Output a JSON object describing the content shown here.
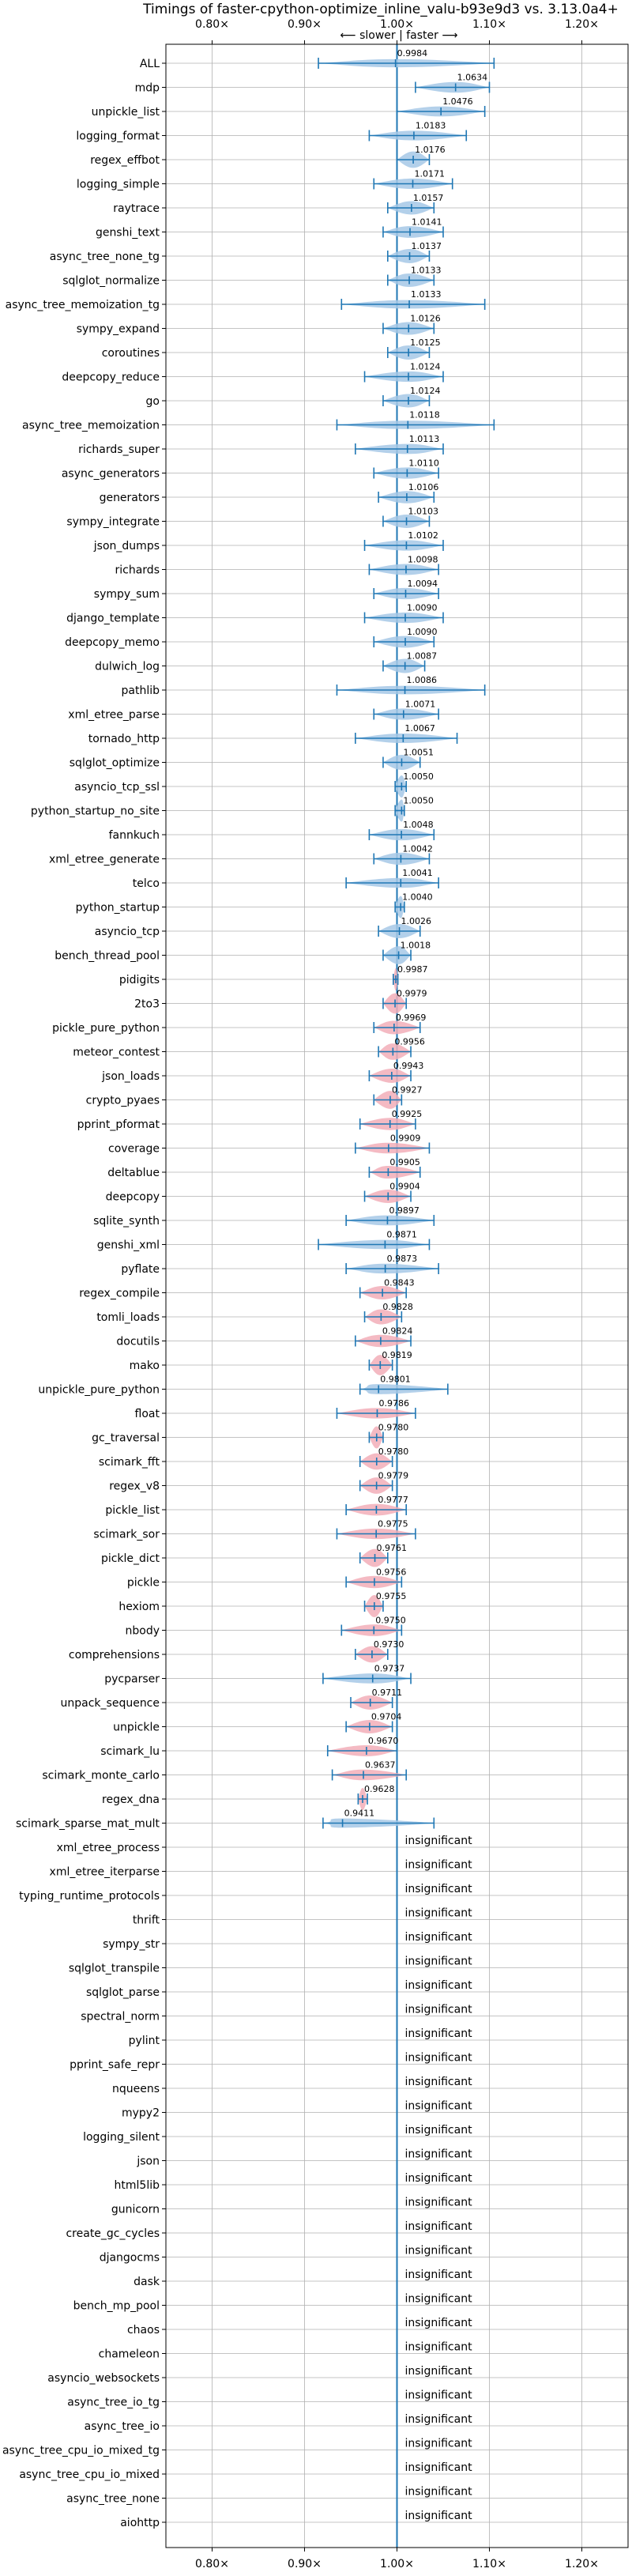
{
  "chart_data": {
    "type": "violin",
    "title": "Timings of faster-cpython-optimize_inline_valu-b93e9d3 vs. 3.13.0a4+",
    "direction_note": "⟵ slower | faster ⟶",
    "xlim": [
      0.75,
      1.25
    ],
    "xticks": [
      0.8,
      0.9,
      1.0,
      1.1,
      1.2
    ],
    "xtick_labels": [
      "0.80×",
      "0.90×",
      "1.00×",
      "1.10×",
      "1.20×"
    ],
    "grid": true,
    "colors": {
      "faster": "#1f77b4",
      "slower": "#e377c2",
      "violin_faster": "#a6c8e6",
      "violin_slower": "#f2aeb8",
      "line": "#1f77b4"
    },
    "significant": [
      {
        "name": "ALL",
        "value": 0.9984,
        "min": 0.915,
        "max": 1.105,
        "label": "0.9984"
      },
      {
        "name": "mdp",
        "value": 1.0634,
        "min": 1.02,
        "max": 1.1,
        "label": "1.0634"
      },
      {
        "name": "unpickle_list",
        "value": 1.0476,
        "min": 1.0,
        "max": 1.095,
        "label": "1.0476"
      },
      {
        "name": "logging_format",
        "value": 1.0183,
        "min": 0.97,
        "max": 1.075,
        "label": "1.0183"
      },
      {
        "name": "regex_effbot",
        "value": 1.0176,
        "min": 1.0,
        "max": 1.035,
        "label": "1.0176"
      },
      {
        "name": "logging_simple",
        "value": 1.0171,
        "min": 0.975,
        "max": 1.06,
        "label": "1.0171"
      },
      {
        "name": "raytrace",
        "value": 1.0157,
        "min": 0.99,
        "max": 1.04,
        "label": "1.0157"
      },
      {
        "name": "genshi_text",
        "value": 1.0141,
        "min": 0.985,
        "max": 1.05,
        "label": "1.0141"
      },
      {
        "name": "async_tree_none_tg",
        "value": 1.0137,
        "min": 0.99,
        "max": 1.035,
        "label": "1.0137"
      },
      {
        "name": "sqlglot_normalize",
        "value": 1.0133,
        "min": 0.99,
        "max": 1.04,
        "label": "1.0133"
      },
      {
        "name": "async_tree_memoization_tg",
        "value": 1.0133,
        "min": 0.94,
        "max": 1.095,
        "label": "1.0133"
      },
      {
        "name": "sympy_expand",
        "value": 1.0126,
        "min": 0.985,
        "max": 1.04,
        "label": "1.0126"
      },
      {
        "name": "coroutines",
        "value": 1.0125,
        "min": 0.99,
        "max": 1.035,
        "label": "1.0125"
      },
      {
        "name": "deepcopy_reduce",
        "value": 1.0124,
        "min": 0.965,
        "max": 1.05,
        "label": "1.0124"
      },
      {
        "name": "go",
        "value": 1.0124,
        "min": 0.985,
        "max": 1.035,
        "label": "1.0124"
      },
      {
        "name": "async_tree_memoization",
        "value": 1.0118,
        "min": 0.935,
        "max": 1.105,
        "label": "1.0118"
      },
      {
        "name": "richards_super",
        "value": 1.0113,
        "min": 0.955,
        "max": 1.05,
        "label": "1.0113"
      },
      {
        "name": "async_generators",
        "value": 1.011,
        "min": 0.975,
        "max": 1.045,
        "label": "1.0110"
      },
      {
        "name": "generators",
        "value": 1.0106,
        "min": 0.98,
        "max": 1.04,
        "label": "1.0106"
      },
      {
        "name": "sympy_integrate",
        "value": 1.0103,
        "min": 0.985,
        "max": 1.035,
        "label": "1.0103"
      },
      {
        "name": "json_dumps",
        "value": 1.0102,
        "min": 0.965,
        "max": 1.05,
        "label": "1.0102"
      },
      {
        "name": "richards",
        "value": 1.0098,
        "min": 0.97,
        "max": 1.045,
        "label": "1.0098"
      },
      {
        "name": "sympy_sum",
        "value": 1.0094,
        "min": 0.975,
        "max": 1.045,
        "label": "1.0094"
      },
      {
        "name": "django_template",
        "value": 1.009,
        "min": 0.965,
        "max": 1.05,
        "label": "1.0090"
      },
      {
        "name": "deepcopy_memo",
        "value": 1.009,
        "min": 0.975,
        "max": 1.04,
        "label": "1.0090"
      },
      {
        "name": "dulwich_log",
        "value": 1.0087,
        "min": 0.985,
        "max": 1.03,
        "label": "1.0087"
      },
      {
        "name": "pathlib",
        "value": 1.0086,
        "min": 0.935,
        "max": 1.095,
        "label": "1.0086"
      },
      {
        "name": "xml_etree_parse",
        "value": 1.0071,
        "min": 0.975,
        "max": 1.045,
        "label": "1.0071"
      },
      {
        "name": "tornado_http",
        "value": 1.0067,
        "min": 0.955,
        "max": 1.065,
        "label": "1.0067"
      },
      {
        "name": "sqlglot_optimize",
        "value": 1.0051,
        "min": 0.985,
        "max": 1.025,
        "label": "1.0051"
      },
      {
        "name": "asyncio_tcp_ssl",
        "value": 1.005,
        "min": 0.998,
        "max": 1.01,
        "label": "1.0050"
      },
      {
        "name": "python_startup_no_site",
        "value": 1.005,
        "min": 0.998,
        "max": 1.008,
        "label": "1.0050"
      },
      {
        "name": "fannkuch",
        "value": 1.0048,
        "min": 0.97,
        "max": 1.04,
        "label": "1.0048"
      },
      {
        "name": "xml_etree_generate",
        "value": 1.0042,
        "min": 0.975,
        "max": 1.035,
        "label": "1.0042"
      },
      {
        "name": "telco",
        "value": 1.0041,
        "min": 0.945,
        "max": 1.045,
        "label": "1.0041"
      },
      {
        "name": "python_startup",
        "value": 1.004,
        "min": 0.998,
        "max": 1.008,
        "label": "1.0040"
      },
      {
        "name": "asyncio_tcp",
        "value": 1.0026,
        "min": 0.98,
        "max": 1.025,
        "label": "1.0026"
      },
      {
        "name": "bench_thread_pool",
        "value": 1.0018,
        "min": 0.985,
        "max": 1.015,
        "label": "1.0018"
      },
      {
        "name": "pidigits",
        "value": 0.9987,
        "min": 0.996,
        "max": 1.001,
        "label": "0.9987"
      },
      {
        "name": "2to3",
        "value": 0.9979,
        "min": 0.985,
        "max": 1.01,
        "label": "0.9979"
      },
      {
        "name": "pickle_pure_python",
        "value": 0.9969,
        "min": 0.975,
        "max": 1.025,
        "label": "0.9969"
      },
      {
        "name": "meteor_contest",
        "value": 0.9956,
        "min": 0.98,
        "max": 1.015,
        "label": "0.9956"
      },
      {
        "name": "json_loads",
        "value": 0.9943,
        "min": 0.97,
        "max": 1.015,
        "label": "0.9943"
      },
      {
        "name": "crypto_pyaes",
        "value": 0.9927,
        "min": 0.975,
        "max": 1.005,
        "label": "0.9927"
      },
      {
        "name": "pprint_pformat",
        "value": 0.9925,
        "min": 0.96,
        "max": 1.02,
        "label": "0.9925"
      },
      {
        "name": "coverage",
        "value": 0.9909,
        "min": 0.955,
        "max": 1.035,
        "label": "0.9909"
      },
      {
        "name": "deltablue",
        "value": 0.9905,
        "min": 0.97,
        "max": 1.025,
        "label": "0.9905"
      },
      {
        "name": "deepcopy",
        "value": 0.9904,
        "min": 0.965,
        "max": 1.015,
        "label": "0.9904"
      },
      {
        "name": "sqlite_synth",
        "value": 0.9897,
        "min": 0.945,
        "max": 1.04,
        "label": "0.9897"
      },
      {
        "name": "genshi_xml",
        "value": 0.9871,
        "min": 0.915,
        "max": 1.035,
        "label": "0.9871"
      },
      {
        "name": "pyflate",
        "value": 0.9873,
        "min": 0.945,
        "max": 1.045,
        "label": "0.9873"
      },
      {
        "name": "regex_compile",
        "value": 0.9843,
        "min": 0.96,
        "max": 1.01,
        "label": "0.9843"
      },
      {
        "name": "tomli_loads",
        "value": 0.9828,
        "min": 0.965,
        "max": 1.005,
        "label": "0.9828"
      },
      {
        "name": "docutils",
        "value": 0.9824,
        "min": 0.955,
        "max": 1.015,
        "label": "0.9824"
      },
      {
        "name": "mako",
        "value": 0.9819,
        "min": 0.97,
        "max": 0.995,
        "label": "0.9819"
      },
      {
        "name": "unpickle_pure_python",
        "value": 0.9801,
        "min": 0.96,
        "max": 1.055,
        "label": "0.9801"
      },
      {
        "name": "float",
        "value": 0.9786,
        "min": 0.935,
        "max": 1.02,
        "label": "0.9786"
      },
      {
        "name": "gc_traversal",
        "value": 0.978,
        "min": 0.97,
        "max": 0.985,
        "label": "0.9780"
      },
      {
        "name": "scimark_fft",
        "value": 0.978,
        "min": 0.96,
        "max": 0.995,
        "label": "0.9780"
      },
      {
        "name": "regex_v8",
        "value": 0.9779,
        "min": 0.96,
        "max": 0.995,
        "label": "0.9779"
      },
      {
        "name": "pickle_list",
        "value": 0.9777,
        "min": 0.945,
        "max": 1.01,
        "label": "0.9777"
      },
      {
        "name": "scimark_sor",
        "value": 0.9775,
        "min": 0.935,
        "max": 1.02,
        "label": "0.9775"
      },
      {
        "name": "pickle_dict",
        "value": 0.9761,
        "min": 0.96,
        "max": 0.99,
        "label": "0.9761"
      },
      {
        "name": "pickle",
        "value": 0.9756,
        "min": 0.945,
        "max": 1.005,
        "label": "0.9756"
      },
      {
        "name": "hexiom",
        "value": 0.9755,
        "min": 0.965,
        "max": 0.985,
        "label": "0.9755"
      },
      {
        "name": "nbody",
        "value": 0.975,
        "min": 0.94,
        "max": 1.005,
        "label": "0.9750"
      },
      {
        "name": "comprehensions",
        "value": 0.973,
        "min": 0.955,
        "max": 0.99,
        "label": "0.9730"
      },
      {
        "name": "pycparser",
        "value": 0.9737,
        "min": 0.92,
        "max": 1.015,
        "label": "0.9737"
      },
      {
        "name": "unpack_sequence",
        "value": 0.9711,
        "min": 0.95,
        "max": 0.995,
        "label": "0.9711"
      },
      {
        "name": "unpickle",
        "value": 0.9704,
        "min": 0.945,
        "max": 0.995,
        "label": "0.9704"
      },
      {
        "name": "scimark_lu",
        "value": 0.967,
        "min": 0.925,
        "max": 1.0,
        "label": "0.9670"
      },
      {
        "name": "scimark_monte_carlo",
        "value": 0.9637,
        "min": 0.93,
        "max": 1.01,
        "label": "0.9637"
      },
      {
        "name": "regex_dna",
        "value": 0.9628,
        "min": 0.958,
        "max": 0.968,
        "label": "0.9628"
      },
      {
        "name": "scimark_sparse_mat_mult",
        "value": 0.9411,
        "min": 0.92,
        "max": 1.04,
        "label": "0.9411"
      }
    ],
    "insignificant_label": "insignificant",
    "insignificant": [
      "xml_etree_process",
      "xml_etree_iterparse",
      "typing_runtime_protocols",
      "thrift",
      "sympy_str",
      "sqlglot_transpile",
      "sqlglot_parse",
      "spectral_norm",
      "pylint",
      "pprint_safe_repr",
      "nqueens",
      "mypy2",
      "logging_silent",
      "json",
      "html5lib",
      "gunicorn",
      "create_gc_cycles",
      "djangocms",
      "dask",
      "bench_mp_pool",
      "chaos",
      "chameleon",
      "asyncio_websockets",
      "async_tree_io_tg",
      "async_tree_io",
      "async_tree_cpu_io_mixed_tg",
      "async_tree_cpu_io_mixed",
      "async_tree_none",
      "aiohttp"
    ]
  }
}
